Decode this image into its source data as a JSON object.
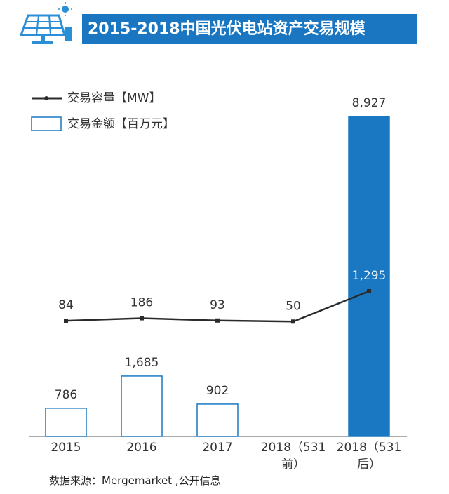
{
  "chart_data": {
    "type": "bar-line",
    "title": "2015-2018中国光伏电站资产交易规模",
    "source": "数据来源：Mergemarket ,公开信息",
    "categories": [
      "2015",
      "2016",
      "2017",
      "2018（531前）",
      "2018（531后）"
    ],
    "series": [
      {
        "name": "交易容量【MW】",
        "type": "line",
        "color": "#2b2b2b",
        "values": [
          84,
          186,
          93,
          50,
          1295
        ],
        "value_labels": [
          "84",
          "186",
          "93",
          "50",
          "1,295"
        ]
      },
      {
        "name": "交易金额【百万元】",
        "type": "bar",
        "color": "#1a78c2",
        "values": [
          786,
          1685,
          902,
          null,
          8927
        ],
        "value_labels": [
          "786",
          "1,685",
          "902",
          null,
          "8,927"
        ],
        "filled": [
          false,
          false,
          false,
          false,
          true
        ]
      }
    ]
  }
}
